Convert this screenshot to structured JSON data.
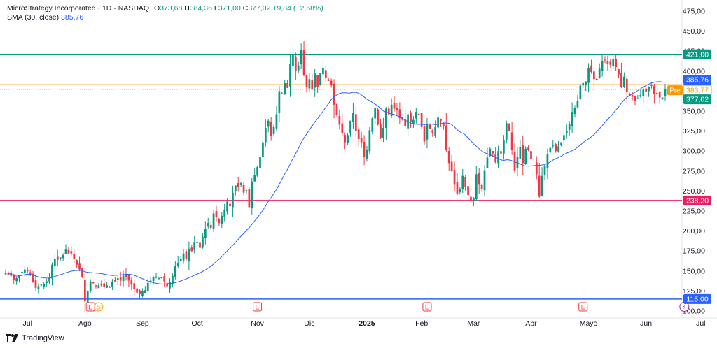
{
  "legend": {
    "title": "MicroStrategy Incorporated · 1D · NASDAQ",
    "o_label": "O",
    "o_value": "373,68",
    "h_label": "H",
    "h_value": "384,36",
    "l_label": "L",
    "l_value": "371,00",
    "c_label": "C",
    "c_value": "377,02",
    "change": "+9,84 (+2,68%)",
    "sma_label": "SMA (30, close)",
    "sma_value": "385,76"
  },
  "brand": "TradingView",
  "colors": {
    "up": "#089981",
    "down": "#f23645",
    "sma": "#2962ff",
    "res": "#089981",
    "sup": "#e91e63",
    "low": "#2962ff",
    "pre": "#ff9800"
  },
  "chart_data": {
    "type": "candlestick",
    "symbol": "MicroStrategy Incorporated · 1D · NASDAQ",
    "ylim": [
      100,
      490
    ],
    "y_ticks": [
      "475,00",
      "450,00",
      "425,00",
      "400,00",
      "375,00",
      "350,00",
      "325,00",
      "300,00",
      "275,00",
      "250,00",
      "225,00",
      "200,00",
      "175,00",
      "150,00",
      "125,00",
      "100,00"
    ],
    "y_tick_values": [
      475,
      450,
      425,
      400,
      375,
      350,
      325,
      300,
      275,
      250,
      225,
      200,
      175,
      150,
      125,
      100
    ],
    "x_labels": [
      {
        "label": "Jul",
        "i": 8
      },
      {
        "label": "Ago",
        "i": 29
      },
      {
        "label": "Sep",
        "i": 50
      },
      {
        "label": "Oct",
        "i": 70
      },
      {
        "label": "Nov",
        "i": 92
      },
      {
        "label": "Dic",
        "i": 111
      },
      {
        "label": "2025",
        "i": 132
      },
      {
        "label": "Feb",
        "i": 152
      },
      {
        "label": "Mar",
        "i": 171
      },
      {
        "label": "Abr",
        "i": 192
      },
      {
        "label": "Mayo",
        "i": 213
      },
      {
        "label": "Jun",
        "i": 234
      },
      {
        "label": "Jul",
        "i": 254
      }
    ],
    "horizontal_lines": [
      {
        "name": "resistance",
        "value": 421.0,
        "label": "421,00",
        "color": "#089981"
      },
      {
        "name": "support",
        "value": 238.2,
        "label": "238,20",
        "color": "#e91e63"
      },
      {
        "name": "low",
        "value": 115.0,
        "label": "115,00",
        "color": "#2962ff"
      }
    ],
    "price_badges": [
      {
        "name": "sma",
        "value": 385.76,
        "label": "385,76",
        "color": "#2962ff"
      },
      {
        "name": "pre",
        "value": 383.77,
        "label": "383,77",
        "tag": "Pre",
        "color": "#ff9800"
      },
      {
        "name": "last",
        "value": 377.02,
        "label": "377,02",
        "color": "#089981"
      }
    ],
    "event_markers": [
      {
        "i": 31,
        "letter": "E"
      },
      {
        "i": 34,
        "letter": "S"
      },
      {
        "i": 92,
        "letter": "E"
      },
      {
        "i": 154,
        "letter": "E"
      },
      {
        "i": 211,
        "letter": "E"
      },
      {
        "i": 248,
        "letter": "⚡"
      }
    ],
    "closes": [
      148,
      146,
      144,
      139,
      141,
      145,
      149,
      152,
      150,
      145,
      136,
      129,
      131,
      133,
      134,
      137,
      141,
      158,
      165,
      164,
      167,
      170,
      177,
      172,
      172,
      165,
      158,
      152,
      142,
      112,
      125,
      137,
      135,
      131,
      132,
      132,
      130,
      132,
      130,
      137,
      137,
      141,
      138,
      144,
      143,
      138,
      133,
      127,
      123,
      121,
      125,
      126,
      135,
      138,
      142,
      143,
      141,
      142,
      137,
      131,
      136,
      144,
      156,
      160,
      165,
      172,
      165,
      178,
      175,
      186,
      186,
      179,
      193,
      203,
      210,
      204,
      222,
      218,
      210,
      219,
      227,
      237,
      231,
      248,
      257,
      255,
      260,
      248,
      251,
      230,
      262,
      270,
      280,
      293,
      311,
      329,
      338,
      319,
      330,
      346,
      375,
      371,
      385,
      379,
      409,
      420,
      400,
      407,
      426,
      395,
      380,
      390,
      378,
      397,
      380,
      398,
      404,
      391,
      388,
      383,
      358,
      345,
      333,
      322,
      311,
      320,
      338,
      348,
      325,
      315,
      311,
      293,
      302,
      326,
      341,
      354,
      333,
      316,
      329,
      353,
      346,
      358,
      353,
      351,
      341,
      339,
      331,
      346,
      336,
      339,
      349,
      346,
      330,
      312,
      334,
      328,
      322,
      330,
      342,
      338,
      331,
      302,
      285,
      275,
      258,
      247,
      253,
      269,
      255,
      245,
      238,
      241,
      271,
      258,
      253,
      276,
      292,
      303,
      297,
      286,
      300,
      297,
      314,
      335,
      325,
      301,
      276,
      293,
      305,
      285,
      303,
      301,
      290,
      288,
      271,
      243,
      269,
      281,
      296,
      304,
      307,
      300,
      306,
      311,
      320,
      325,
      334,
      349,
      354,
      363,
      382,
      385,
      387,
      404,
      399,
      390,
      389,
      403,
      413,
      414,
      409,
      408,
      415,
      405,
      396,
      380,
      393,
      374,
      369,
      368,
      363,
      366,
      370,
      377,
      374,
      380,
      383,
      371,
      372,
      367,
      367,
      377
    ]
  }
}
